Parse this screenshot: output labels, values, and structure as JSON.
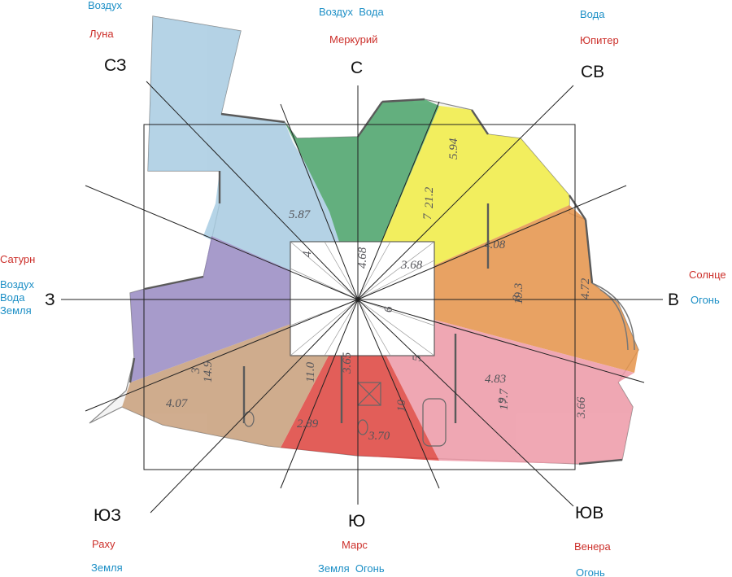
{
  "colors": {
    "planet": "#cc2f2a",
    "element": "#1c8fc6",
    "direction": "#111111",
    "lines": "#222222",
    "sector_north": "#4aa46a",
    "sector_northeast": "#f2ee45",
    "sector_east": "#e6944a",
    "sector_southeast": "#ef9aa8",
    "sector_south": "#e0443f",
    "sector_southwest": "#c9a07c",
    "sector_west": "#9a8cc4",
    "sector_northwest": "#a9cde3",
    "center": "#ffffff"
  },
  "directions": {
    "n": "С",
    "ne": "СВ",
    "e": "В",
    "se": "ЮВ",
    "s": "Ю",
    "sw": "ЮЗ",
    "w": "З",
    "nw": "СЗ"
  },
  "planets": {
    "n": "Меркурий",
    "ne": "Юпитер",
    "e": "Солнце",
    "se": "Венера",
    "s": "Марс",
    "sw": "Раху",
    "w": "Сатурн",
    "nw": "Луна"
  },
  "elements": {
    "n": "Воздух  Вода",
    "ne": "Вода",
    "e": "Огонь",
    "se": "Огонь",
    "s": "Земля  Огонь",
    "sw": "Земля",
    "w_1": "Воздух",
    "w_2": "Вода",
    "w_3": "Земля",
    "nw": "Воздух"
  },
  "room_labels": {
    "r1": "5.87",
    "r2": "5.94",
    "r3": "21.2",
    "r4": "7",
    "r5": "4.08",
    "r6": "4.72",
    "r7": "8",
    "r8": "19.3",
    "r9": "3.68",
    "r10": "4.68",
    "r11": "4.83",
    "r12": "9",
    "r13": "17.7",
    "r14": "3.66",
    "r15": "3.65",
    "r16": "10",
    "r17": "3.70",
    "r18": "2.89",
    "r19": "11.0",
    "r20": "4.07",
    "r21": "3",
    "r22": "14.9",
    "r23": "4",
    "r24": "6",
    "r25": "5"
  }
}
